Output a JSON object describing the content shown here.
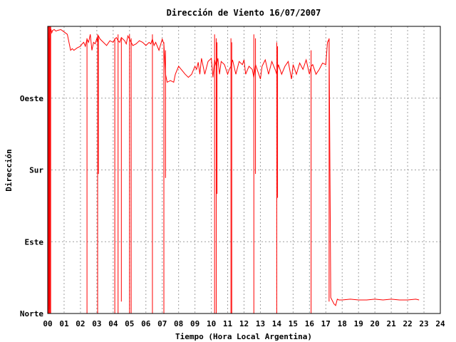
{
  "chart_data": {
    "type": "line",
    "title": "Dirección de Viento 16/07/2007",
    "xlabel": "Tiempo (Hora Local Argentina)",
    "ylabel": "Dirección",
    "xlim": [
      0,
      24
    ],
    "ylim": [
      0,
      360
    ],
    "x_tick_labels": [
      "00",
      "01",
      "02",
      "03",
      "04",
      "05",
      "06",
      "07",
      "08",
      "09",
      "10",
      "11",
      "12",
      "13",
      "14",
      "15",
      "16",
      "17",
      "18",
      "19",
      "20",
      "21",
      "22",
      "23",
      "24"
    ],
    "y_ticks": [
      {
        "value": 0,
        "label": "Norte"
      },
      {
        "value": 90,
        "label": "Este"
      },
      {
        "value": 180,
        "label": "Sur"
      },
      {
        "value": 270,
        "label": "Oeste"
      }
    ],
    "grid": true,
    "line_color": "#ff0000",
    "series": [
      {
        "x": [
          0.0,
          0.03,
          0.05,
          0.08,
          0.1,
          0.13,
          0.15,
          0.2,
          0.25,
          0.3,
          0.4,
          0.5,
          0.6,
          0.8,
          1.0,
          1.2,
          1.4,
          1.5,
          1.6,
          1.8,
          2.0,
          2.1,
          2.2,
          2.3,
          2.4,
          2.5,
          2.6,
          2.7,
          2.8,
          2.9,
          3.0,
          3.05,
          3.1,
          3.2,
          3.4,
          3.6,
          3.8,
          4.0,
          4.1,
          4.2,
          4.3,
          4.4,
          4.5,
          4.6,
          4.7,
          4.8,
          4.9,
          5.0,
          5.1,
          5.2,
          5.4,
          5.6,
          5.8,
          6.0,
          6.2,
          6.3,
          6.4,
          6.5,
          6.6,
          6.8,
          7.0,
          7.1,
          7.2,
          7.3,
          7.5,
          7.7,
          7.8,
          8.0,
          8.2,
          8.4,
          8.6,
          8.8,
          9.0,
          9.1,
          9.2,
          9.3,
          9.4,
          9.5,
          9.6,
          9.8,
          10.0,
          10.1,
          10.2,
          10.3,
          10.4,
          10.5,
          10.6,
          10.8,
          11.0,
          11.1,
          11.2,
          11.3,
          11.5,
          11.7,
          11.9,
          12.0,
          12.1,
          12.3,
          12.5,
          12.6,
          12.7,
          12.9,
          13.0,
          13.1,
          13.3,
          13.5,
          13.7,
          13.9,
          14.0,
          14.1,
          14.3,
          14.5,
          14.7,
          14.9,
          15.0,
          15.2,
          15.4,
          15.6,
          15.8,
          16.0,
          16.1,
          16.2,
          16.4,
          16.6,
          16.8,
          17.0,
          17.1,
          17.2,
          17.3,
          17.5,
          17.6,
          17.7,
          17.8,
          18.0,
          18.5,
          19.0,
          19.5,
          20.0,
          20.5,
          21.0,
          21.5,
          22.0,
          22.5,
          22.7
        ],
        "y": [
          350,
          5,
          352,
          10,
          345,
          5,
          355,
          356,
          352,
          355,
          356,
          354,
          355,
          356,
          353,
          350,
          330,
          332,
          330,
          333,
          335,
          338,
          340,
          335,
          344,
          340,
          350,
          330,
          340,
          338,
          345,
          340,
          348,
          344,
          340,
          336,
          342,
          340,
          344,
          346,
          342,
          340,
          346,
          344,
          342,
          338,
          348,
          344,
          340,
          336,
          338,
          342,
          340,
          336,
          340,
          338,
          344,
          336,
          340,
          330,
          344,
          338,
          300,
          290,
          292,
          290,
          300,
          310,
          305,
          300,
          296,
          300,
          310,
          306,
          315,
          300,
          320,
          310,
          300,
          316,
          320,
          296,
          318,
          310,
          320,
          300,
          316,
          312,
          300,
          306,
          310,
          318,
          300,
          316,
          312,
          318,
          300,
          310,
          306,
          296,
          312,
          300,
          294,
          310,
          318,
          300,
          316,
          306,
          300,
          312,
          300,
          310,
          316,
          294,
          312,
          300,
          314,
          306,
          318,
          300,
          310,
          312,
          300,
          306,
          314,
          312,
          340,
          344,
          20,
          12,
          10,
          18,
          17,
          17,
          18,
          17,
          17,
          18,
          17,
          18,
          17,
          17,
          18,
          17
        ]
      }
    ],
    "spikes": [
      {
        "x": 0.02,
        "y_from": 360,
        "y_to": 0
      },
      {
        "x": 0.06,
        "y_from": 360,
        "y_to": 0
      },
      {
        "x": 0.1,
        "y_from": 360,
        "y_to": 0
      },
      {
        "x": 0.14,
        "y_from": 360,
        "y_to": 0
      },
      {
        "x": 0.18,
        "y_from": 360,
        "y_to": 0
      },
      {
        "x": 2.4,
        "y_from": 345,
        "y_to": 0
      },
      {
        "x": 3.05,
        "y_from": 350,
        "y_to": 0
      },
      {
        "x": 3.1,
        "y_from": 345,
        "y_to": 175
      },
      {
        "x": 4.1,
        "y_from": 345,
        "y_to": 0
      },
      {
        "x": 4.3,
        "y_from": 350,
        "y_to": 0
      },
      {
        "x": 4.5,
        "y_from": 345,
        "y_to": 15
      },
      {
        "x": 5.0,
        "y_from": 350,
        "y_to": 0
      },
      {
        "x": 5.1,
        "y_from": 345,
        "y_to": 0
      },
      {
        "x": 6.4,
        "y_from": 350,
        "y_to": 0
      },
      {
        "x": 7.1,
        "y_from": 340,
        "y_to": 0
      },
      {
        "x": 7.2,
        "y_from": 330,
        "y_to": 170
      },
      {
        "x": 10.2,
        "y_from": 350,
        "y_to": 0
      },
      {
        "x": 10.3,
        "y_from": 345,
        "y_to": 0
      },
      {
        "x": 10.35,
        "y_from": 340,
        "y_to": 150
      },
      {
        "x": 11.2,
        "y_from": 345,
        "y_to": 0
      },
      {
        "x": 11.25,
        "y_from": 340,
        "y_to": 0
      },
      {
        "x": 12.6,
        "y_from": 350,
        "y_to": 0
      },
      {
        "x": 12.7,
        "y_from": 345,
        "y_to": 175
      },
      {
        "x": 14.0,
        "y_from": 340,
        "y_to": 0
      },
      {
        "x": 14.05,
        "y_from": 335,
        "y_to": 145
      },
      {
        "x": 16.1,
        "y_from": 330,
        "y_to": 0
      },
      {
        "x": 17.2,
        "y_from": 345,
        "y_to": 15
      }
    ]
  }
}
